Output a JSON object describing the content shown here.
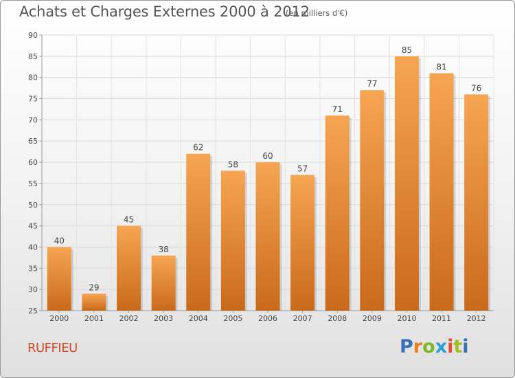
{
  "header": {
    "title": "Achats et Charges Externes 2000 à 2012",
    "subtitle": "(en milliers d'€)"
  },
  "footer": {
    "commune": "RUFFIEU",
    "logo": "Proxiti"
  },
  "colors": {
    "bar_light": "#f6a552",
    "bar_dark": "#c96a1b",
    "title": "#555555",
    "commune": "#d0492a",
    "logo_letters": [
      "#3a6fb5",
      "#e87f1e",
      "#7ab829",
      "#2aa0d6",
      "#e34a3a",
      "#a0c020",
      "#3a6fb5"
    ]
  },
  "chart_data": {
    "type": "bar",
    "title": "Achats et Charges Externes 2000 à 2012",
    "subtitle": "(en milliers d'€)",
    "categories": [
      "2000",
      "2001",
      "2002",
      "2003",
      "2004",
      "2005",
      "2006",
      "2007",
      "2008",
      "2009",
      "2010",
      "2011",
      "2012"
    ],
    "values": [
      40,
      29,
      45,
      38,
      62,
      58,
      60,
      57,
      71,
      77,
      85,
      81,
      76
    ],
    "ylim": [
      25,
      90
    ],
    "yticks": [
      25,
      30,
      35,
      40,
      45,
      50,
      55,
      60,
      65,
      70,
      75,
      80,
      85,
      90
    ],
    "grid": true,
    "xlabel": "",
    "ylabel": ""
  }
}
